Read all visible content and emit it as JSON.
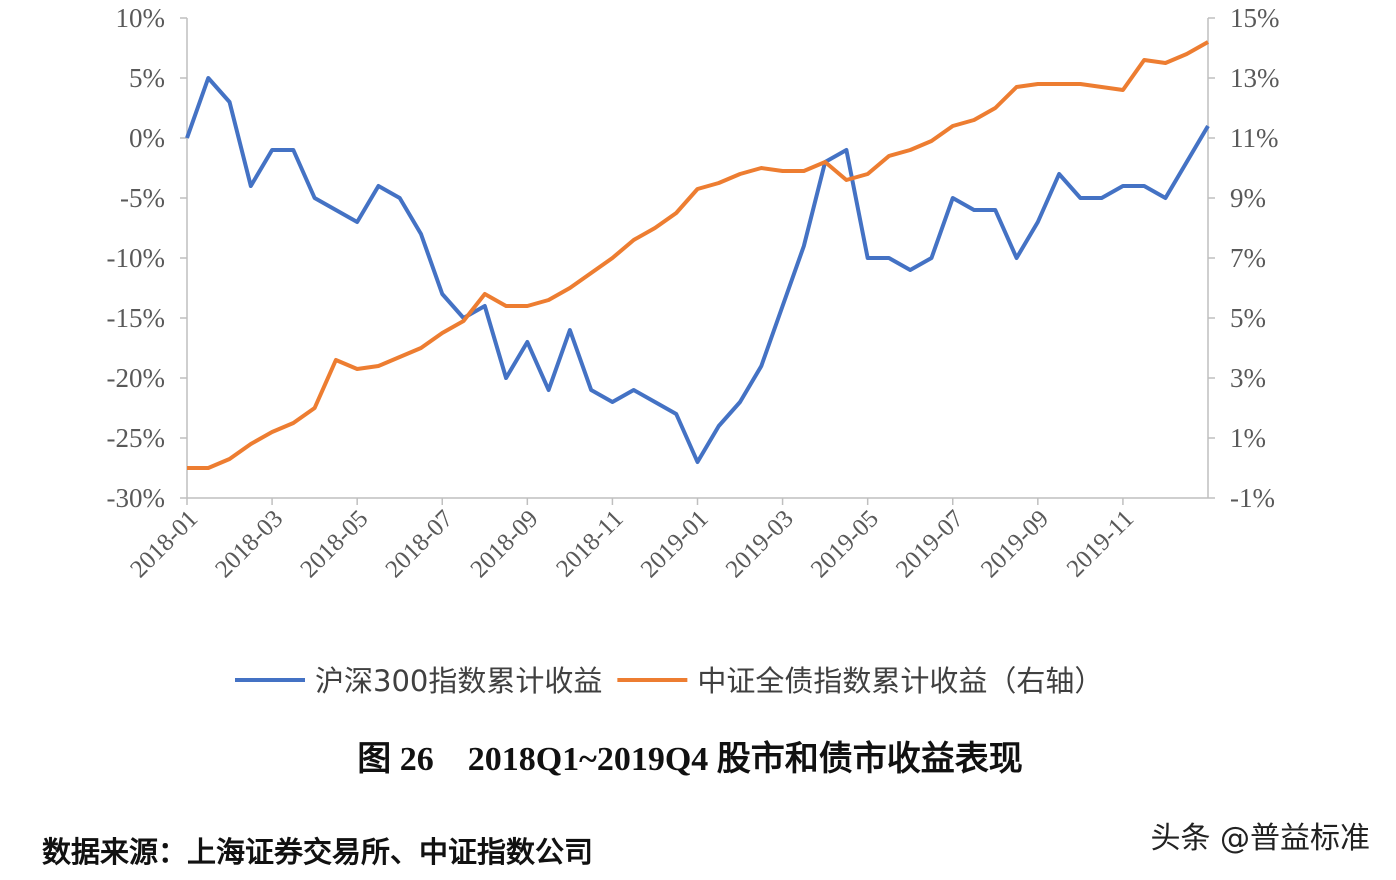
{
  "chart_data": {
    "type": "line",
    "caption": "图 26　2018Q1~2019Q4 股市和债市收益表现",
    "source": "数据来源：上海证券交易所、中证指数公司",
    "watermark": "头条 @普益标准",
    "categories": [
      "2018-01",
      null,
      null,
      null,
      "2018-03",
      null,
      null,
      null,
      "2018-05",
      null,
      null,
      null,
      "2018-07",
      null,
      null,
      null,
      "2018-09",
      null,
      null,
      null,
      "2018-11",
      null,
      null,
      null,
      "2019-01",
      null,
      null,
      null,
      "2019-03",
      null,
      null,
      null,
      "2019-05",
      null,
      null,
      null,
      "2019-07",
      null,
      null,
      null,
      "2019-09",
      null,
      null,
      null,
      "2019-11",
      null,
      null,
      null,
      null
    ],
    "series": [
      {
        "name": "沪深300指数累计收益",
        "color": "#4472c4",
        "values": [
          0,
          5,
          3,
          -4,
          -1,
          -1,
          -5,
          -6,
          -7,
          -4,
          -5,
          -8,
          -13,
          -15,
          -14,
          -20,
          -17,
          -21,
          -16,
          -21,
          -22,
          -21,
          -22,
          -23,
          -27,
          -24,
          -22,
          -19,
          -14,
          -9,
          -2,
          -1,
          -10,
          -10,
          -11,
          -10,
          -5,
          -6,
          -6,
          -10,
          -7,
          -3,
          -5,
          -5,
          -4,
          -4,
          -5,
          -2,
          1
        ]
      },
      {
        "name": "中证全债指数累计收益（右轴）",
        "color": "#ed7d31",
        "axis": "y2",
        "values": [
          0,
          0,
          0.3,
          0.8,
          1.2,
          1.5,
          2,
          3.6,
          3.3,
          3.4,
          3.7,
          4,
          4.5,
          4.9,
          5.8,
          5.4,
          5.4,
          5.6,
          6,
          6.5,
          7,
          7.6,
          8,
          8.5,
          9.3,
          9.5,
          9.8,
          10,
          9.9,
          9.9,
          10.2,
          9.6,
          9.8,
          10.4,
          10.6,
          10.9,
          11.4,
          11.6,
          12,
          12.7,
          12.8,
          12.8,
          12.8,
          12.7,
          12.6,
          13.6,
          13.5,
          13.8,
          14.2
        ]
      }
    ],
    "ylim": [
      -30,
      10
    ],
    "yticks": [
      {
        "value": 10,
        "label": "10%"
      },
      {
        "value": 5,
        "label": "5%"
      },
      {
        "value": 0,
        "label": "0%"
      },
      {
        "value": -5,
        "label": "-5%"
      },
      {
        "value": -10,
        "label": "-10%"
      },
      {
        "value": -15,
        "label": "-15%"
      },
      {
        "value": -20,
        "label": "-20%"
      },
      {
        "value": -25,
        "label": "-25%"
      },
      {
        "value": -30,
        "label": "-30%"
      }
    ],
    "y2lim": [
      -1,
      15
    ],
    "y2ticks": [
      {
        "value": 15,
        "label": "15%"
      },
      {
        "value": 13,
        "label": "13%"
      },
      {
        "value": 11,
        "label": "11%"
      },
      {
        "value": 9,
        "label": "9%"
      },
      {
        "value": 7,
        "label": "7%"
      },
      {
        "value": 5,
        "label": "5%"
      },
      {
        "value": 3,
        "label": "3%"
      },
      {
        "value": 1,
        "label": "1%"
      },
      {
        "value": -1,
        "label": "-1%"
      }
    ],
    "legend": "bottom"
  }
}
